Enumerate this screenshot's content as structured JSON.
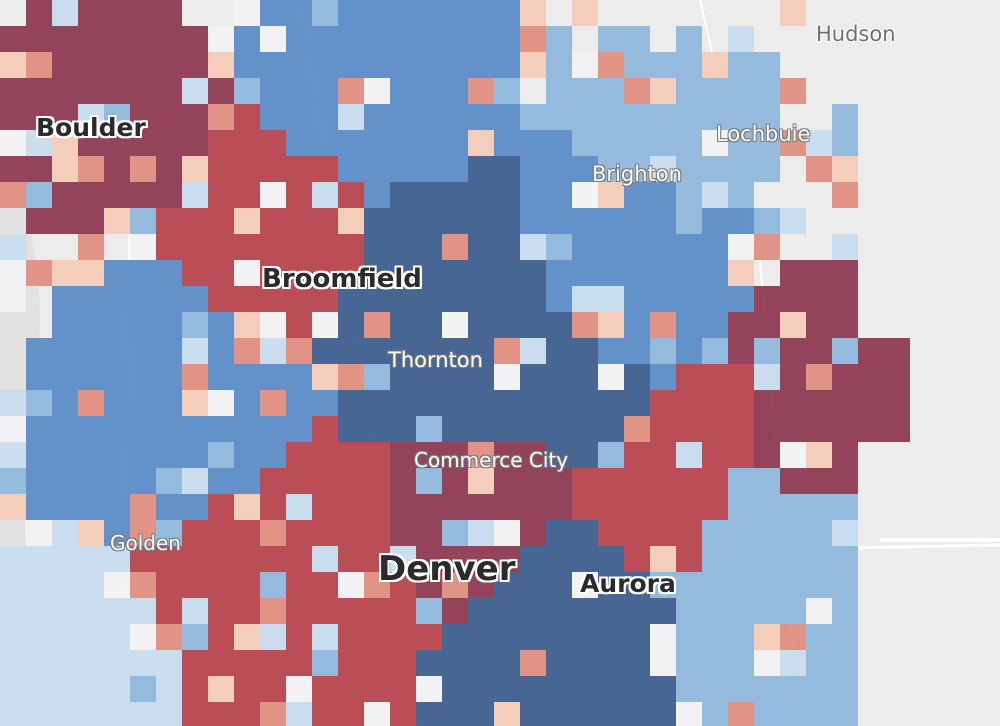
{
  "map": {
    "palette": {
      "deep_red": "#8e3b52",
      "red": "#b8444f",
      "salmon": "#e08f7f",
      "peach": "#f6cbb8",
      "pale": "#f2f2f4",
      "light_blue": "#c7dcee",
      "mid_blue": "#8fb7dc",
      "blue": "#5b8dc7",
      "dark_blue": "#3f5f8e",
      "basemap": "#ececec",
      "road": "#ffffff"
    }
  },
  "labels": {
    "boulder": "Boulder",
    "hudson": "Hudson",
    "lochbuie": "Lochbuie",
    "brighton": "Brighton",
    "broomfield": "Broomfield",
    "thornton": "Thornton",
    "commerce_city": "Commerce City",
    "golden": "Golden",
    "denver": "Denver",
    "aurora": "Aurora"
  }
}
